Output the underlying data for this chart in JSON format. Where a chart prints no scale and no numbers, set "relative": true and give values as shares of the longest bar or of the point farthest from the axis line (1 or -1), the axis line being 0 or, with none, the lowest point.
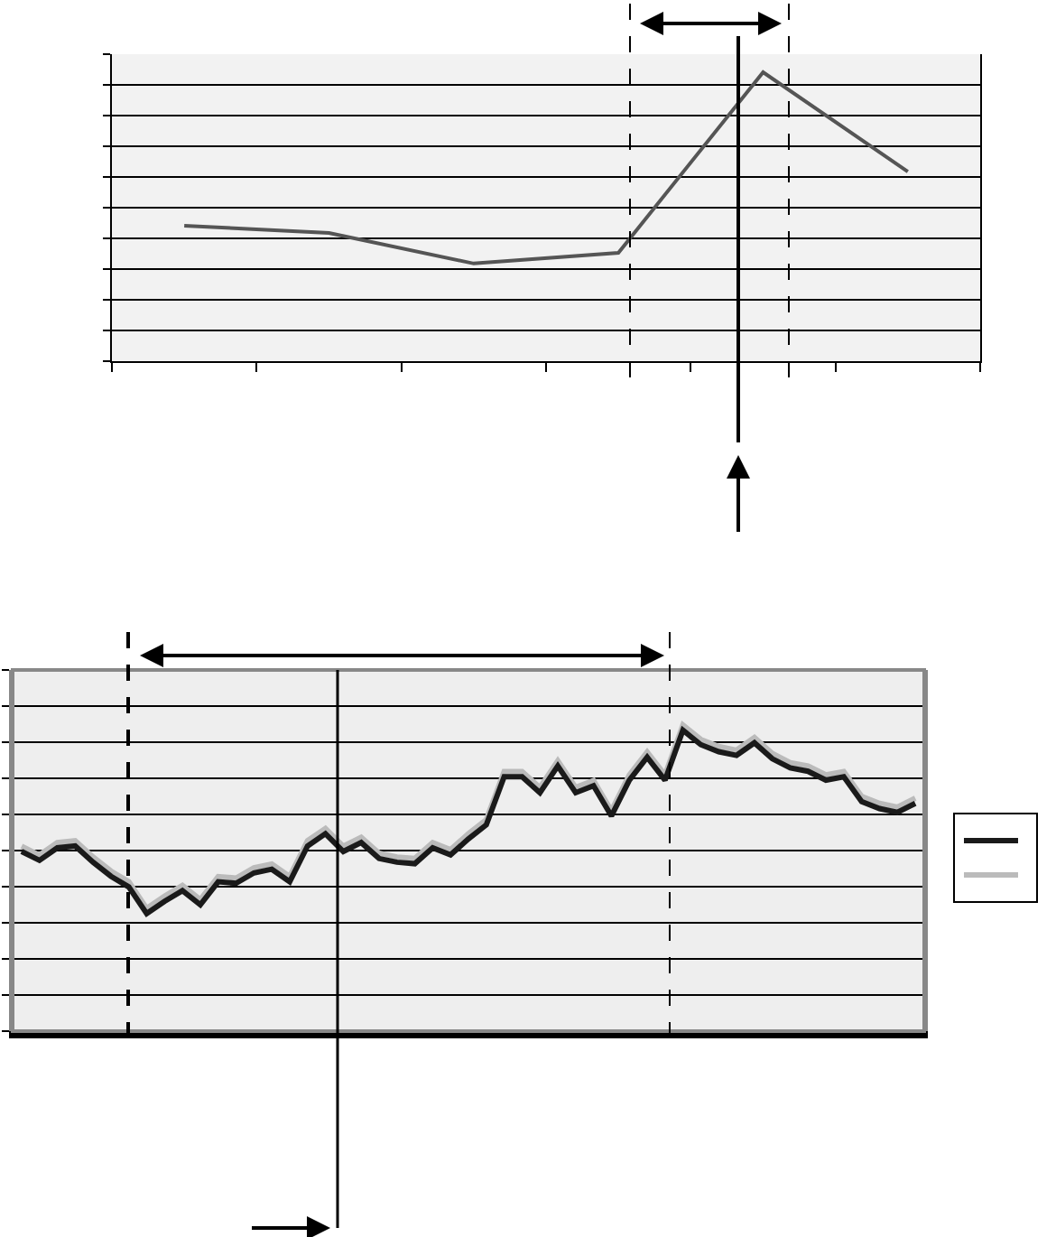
{
  "chart_data": [
    {
      "type": "line",
      "relative": true,
      "categories": [
        null,
        null,
        null,
        null,
        null,
        null
      ],
      "grid": "y",
      "series": [
        {
          "color": "#555555",
          "values": [
            0.469,
            0.444,
            0.338,
            0.375,
            1,
            0.656
          ]
        }
      ]
    },
    {
      "type": "line",
      "relative": true,
      "categories": [
        null,
        null,
        null,
        null,
        null,
        null,
        null,
        null,
        null,
        null,
        null,
        null,
        null,
        null,
        null,
        null,
        null,
        null,
        null,
        null,
        null,
        null,
        null,
        null,
        null,
        null,
        null,
        null,
        null,
        null,
        null,
        null,
        null,
        null,
        null,
        null,
        null,
        null,
        null,
        null,
        null,
        null,
        null,
        null,
        null,
        null,
        null,
        null,
        null,
        null,
        null
      ],
      "grid": "y",
      "series": [
        {
          "color": "#bbbbbb",
          "values": [
            0.604,
            0.575,
            0.616,
            0.622,
            0.569,
            0.523,
            0.488,
            0.401,
            0.441,
            0.476,
            0.43,
            0.505,
            0.5,
            0.534,
            0.546,
            0.505,
            0.622,
            0.662,
            0.604,
            0.633,
            0.581,
            0.569,
            0.564,
            0.616,
            0.593,
            0.645,
            0.691,
            0.848,
            0.848,
            0.796,
            0.883,
            0.796,
            0.819,
            0.72,
            0.837,
            0.912,
            0.837,
            1.0,
            0.953,
            0.93,
            0.918,
            0.959,
            0.907,
            0.877,
            0.866,
            0.837,
            0.848,
            0.767,
            0.744,
            0.732,
            0.761
          ]
        },
        {
          "color": "#1a1a1a",
          "values": [
            0.587,
            0.558,
            0.599,
            0.605,
            0.552,
            0.506,
            0.471,
            0.384,
            0.424,
            0.459,
            0.413,
            0.488,
            0.483,
            0.517,
            0.529,
            0.488,
            0.605,
            0.645,
            0.587,
            0.616,
            0.564,
            0.552,
            0.547,
            0.599,
            0.576,
            0.628,
            0.674,
            0.831,
            0.831,
            0.779,
            0.866,
            0.779,
            0.802,
            0.703,
            0.82,
            0.895,
            0.82,
            0.983,
            0.936,
            0.913,
            0.901,
            0.942,
            0.89,
            0.86,
            0.849,
            0.82,
            0.831,
            0.75,
            0.727,
            0.715,
            0.744
          ]
        }
      ]
    }
  ]
}
